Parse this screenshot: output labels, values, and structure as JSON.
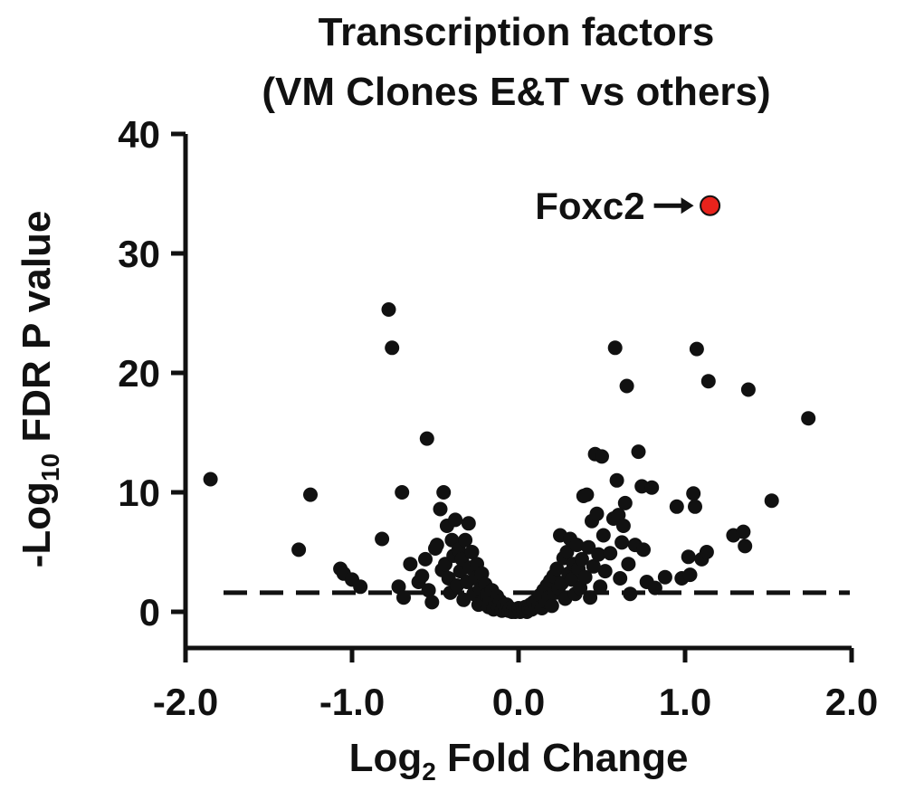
{
  "chart_data": {
    "type": "scatter",
    "title": "Transcription factors",
    "subtitle": "(VM Clones E&T vs others)",
    "xlabel": {
      "main": "Log",
      "sub": "2",
      "rest": " Fold Change"
    },
    "ylabel": {
      "main": "-Log",
      "sub": "10",
      "rest": " FDR P value"
    },
    "xlim": [
      -2.0,
      2.0
    ],
    "ylim": [
      -3,
      40
    ],
    "xticks": [
      "-2.0",
      "-1.0",
      "0.0",
      "1.0",
      "2.0"
    ],
    "xtick_values": [
      -2.0,
      -1.0,
      0.0,
      1.0,
      2.0
    ],
    "yticks": [
      "0",
      "10",
      "20",
      "30",
      "40"
    ],
    "ytick_values": [
      0,
      10,
      20,
      30,
      40
    ],
    "threshold_y": 1.6,
    "colors": {
      "point": "#111111",
      "highlight": "#e8231c",
      "axis": "#111111"
    },
    "highlight": {
      "label": "Foxc2",
      "x": 1.15,
      "y": 34.0
    },
    "points": [
      [
        -1.85,
        11.1
      ],
      [
        -1.32,
        5.2
      ],
      [
        -1.25,
        9.8
      ],
      [
        -1.07,
        3.6
      ],
      [
        -1.05,
        3.2
      ],
      [
        -1.0,
        2.7
      ],
      [
        -0.95,
        2.1
      ],
      [
        -0.82,
        6.1
      ],
      [
        -0.78,
        25.3
      ],
      [
        -0.76,
        22.1
      ],
      [
        -0.72,
        2.1
      ],
      [
        -0.7,
        10.0
      ],
      [
        -0.69,
        1.2
      ],
      [
        -0.65,
        4.0
      ],
      [
        -0.6,
        2.5
      ],
      [
        -0.58,
        3.0
      ],
      [
        -0.56,
        4.4
      ],
      [
        -0.55,
        14.5
      ],
      [
        -0.54,
        1.8
      ],
      [
        -0.52,
        0.8
      ],
      [
        -0.5,
        5.3
      ],
      [
        -0.49,
        5.6
      ],
      [
        -0.47,
        8.6
      ],
      [
        -0.46,
        3.5
      ],
      [
        -0.45,
        10.0
      ],
      [
        -0.44,
        4.0
      ],
      [
        -0.43,
        7.2
      ],
      [
        -0.42,
        2.8
      ],
      [
        -0.41,
        1.6
      ],
      [
        -0.4,
        6.0
      ],
      [
        -0.39,
        4.7
      ],
      [
        -0.38,
        7.7
      ],
      [
        -0.37,
        2.2
      ],
      [
        -0.36,
        5.2
      ],
      [
        -0.35,
        3.4
      ],
      [
        -0.34,
        4.4
      ],
      [
        -0.33,
        1.0
      ],
      [
        -0.32,
        6.0
      ],
      [
        -0.31,
        2.5
      ],
      [
        -0.3,
        7.4
      ],
      [
        -0.29,
        3.7
      ],
      [
        -0.28,
        5.0
      ],
      [
        -0.27,
        1.5
      ],
      [
        -0.26,
        2.8
      ],
      [
        -0.25,
        4.0
      ],
      [
        -0.24,
        0.6
      ],
      [
        -0.23,
        1.9
      ],
      [
        -0.22,
        3.2
      ],
      [
        -0.21,
        0.9
      ],
      [
        -0.2,
        2.3
      ],
      [
        -0.19,
        1.4
      ],
      [
        -0.18,
        0.4
      ],
      [
        -0.17,
        1.0
      ],
      [
        -0.16,
        1.8
      ],
      [
        -0.15,
        0.2
      ],
      [
        -0.14,
        0.7
      ],
      [
        -0.13,
        1.3
      ],
      [
        -0.12,
        0.3
      ],
      [
        -0.11,
        0.9
      ],
      [
        -0.1,
        0.1
      ],
      [
        -0.09,
        0.5
      ],
      [
        -0.08,
        0.2
      ],
      [
        -0.07,
        0.6
      ],
      [
        -0.06,
        0.1
      ],
      [
        -0.05,
        0.3
      ],
      [
        -0.04,
        0.0
      ],
      [
        -0.03,
        0.2
      ],
      [
        -0.02,
        0.0
      ],
      [
        -0.01,
        0.1
      ],
      [
        0.0,
        0.3
      ],
      [
        0.01,
        0.0
      ],
      [
        0.02,
        0.2
      ],
      [
        0.03,
        0.1
      ],
      [
        0.04,
        0.4
      ],
      [
        0.05,
        0.0
      ],
      [
        0.06,
        0.3
      ],
      [
        0.07,
        0.6
      ],
      [
        0.08,
        0.2
      ],
      [
        0.09,
        0.8
      ],
      [
        0.1,
        0.4
      ],
      [
        0.11,
        1.0
      ],
      [
        0.12,
        0.6
      ],
      [
        0.13,
        1.4
      ],
      [
        0.14,
        0.3
      ],
      [
        0.15,
        1.8
      ],
      [
        0.16,
        0.9
      ],
      [
        0.17,
        2.2
      ],
      [
        0.18,
        1.2
      ],
      [
        0.19,
        2.6
      ],
      [
        0.2,
        0.5
      ],
      [
        0.21,
        3.0
      ],
      [
        0.22,
        1.6
      ],
      [
        0.23,
        3.6
      ],
      [
        0.24,
        2.0
      ],
      [
        0.25,
        6.4
      ],
      [
        0.26,
        2.4
      ],
      [
        0.27,
        4.5
      ],
      [
        0.28,
        1.1
      ],
      [
        0.29,
        5.0
      ],
      [
        0.3,
        3.2
      ],
      [
        0.31,
        6.1
      ],
      [
        0.32,
        2.7
      ],
      [
        0.33,
        4.0
      ],
      [
        0.34,
        1.5
      ],
      [
        0.35,
        5.6
      ],
      [
        0.36,
        3.6
      ],
      [
        0.37,
        2.0
      ],
      [
        0.38,
        4.4
      ],
      [
        0.39,
        9.7
      ],
      [
        0.4,
        2.9
      ],
      [
        0.41,
        9.8
      ],
      [
        0.42,
        5.4
      ],
      [
        0.43,
        1.2
      ],
      [
        0.44,
        7.6
      ],
      [
        0.45,
        3.8
      ],
      [
        0.46,
        13.2
      ],
      [
        0.47,
        8.2
      ],
      [
        0.48,
        4.8
      ],
      [
        0.49,
        2.1
      ],
      [
        0.5,
        13.0
      ],
      [
        0.51,
        6.4
      ],
      [
        0.52,
        3.4
      ],
      [
        0.55,
        4.9
      ],
      [
        0.57,
        7.8
      ],
      [
        0.58,
        22.1
      ],
      [
        0.59,
        11.0
      ],
      [
        0.6,
        8.1
      ],
      [
        0.61,
        2.8
      ],
      [
        0.62,
        5.8
      ],
      [
        0.63,
        7.2
      ],
      [
        0.64,
        9.1
      ],
      [
        0.65,
        18.9
      ],
      [
        0.66,
        4.0
      ],
      [
        0.67,
        1.5
      ],
      [
        0.7,
        5.6
      ],
      [
        0.72,
        13.4
      ],
      [
        0.74,
        10.5
      ],
      [
        0.75,
        5.2
      ],
      [
        0.77,
        2.5
      ],
      [
        0.8,
        10.4
      ],
      [
        0.82,
        2.0
      ],
      [
        0.88,
        2.9
      ],
      [
        0.95,
        8.8
      ],
      [
        0.98,
        2.8
      ],
      [
        1.02,
        4.6
      ],
      [
        1.03,
        3.1
      ],
      [
        1.05,
        9.9
      ],
      [
        1.06,
        8.8
      ],
      [
        1.07,
        22.0
      ],
      [
        1.1,
        4.4
      ],
      [
        1.13,
        5.0
      ],
      [
        1.14,
        19.3
      ],
      [
        1.29,
        6.4
      ],
      [
        1.35,
        6.7
      ],
      [
        1.36,
        5.5
      ],
      [
        1.38,
        18.6
      ],
      [
        1.52,
        9.3
      ],
      [
        1.74,
        16.2
      ]
    ]
  }
}
